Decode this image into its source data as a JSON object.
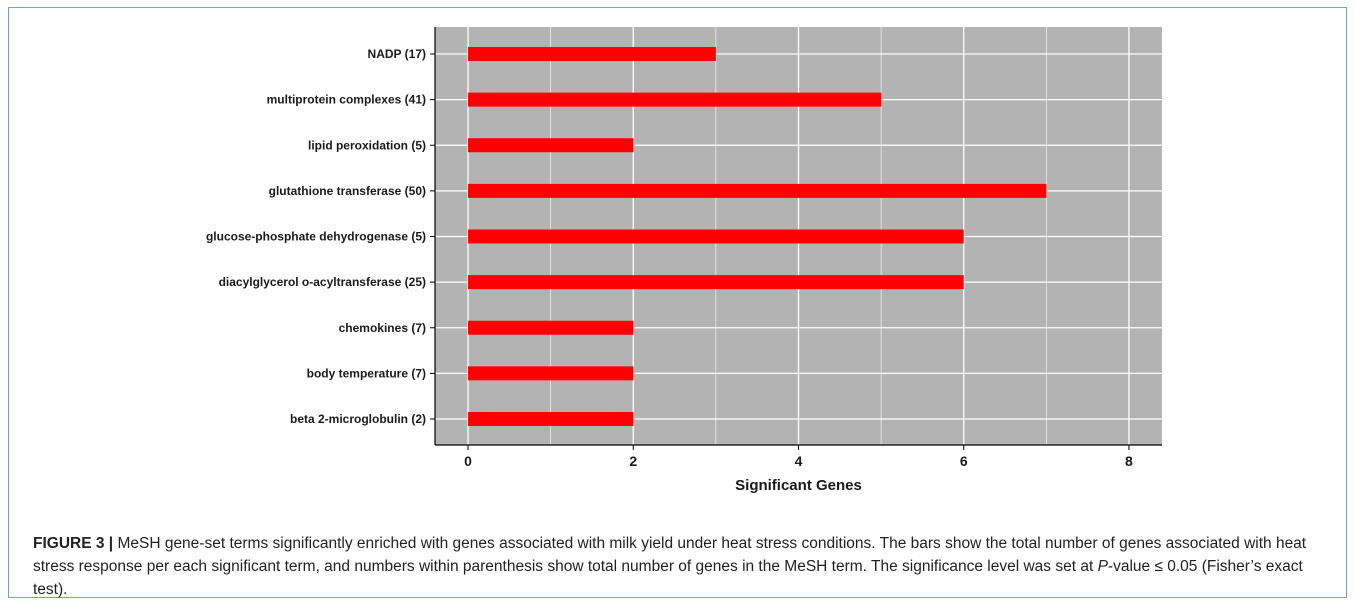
{
  "chart_data": {
    "type": "bar",
    "orientation": "horizontal",
    "categories": [
      "NADP (17)",
      "multiprotein complexes (41)",
      "lipid peroxidation (5)",
      "glutathione transferase (50)",
      "glucose-phosphate dehydrogenase (5)",
      "diacylglycerol o-acyltransferase (25)",
      "chemokines (7)",
      "body temperature (7)",
      "beta 2-microglobulin (2)"
    ],
    "values": [
      3,
      5,
      2,
      7,
      6,
      6,
      2,
      2,
      2
    ],
    "xlabel": "Significant Genes",
    "xlim": [
      -0.4,
      8.4
    ],
    "xticks": [
      0,
      2,
      4,
      6,
      8
    ],
    "minor_gridlines": [
      1,
      3,
      5,
      7
    ],
    "grid": true,
    "colors": {
      "bar": "#ff0000",
      "panel_background": "#b3b3b3",
      "gridline": "#ffffff",
      "axis": "#000000"
    }
  },
  "caption": {
    "label": "FIGURE 3 |",
    "text": " MeSH gene-set terms significantly enriched with genes associated with milk yield under heat stress conditions. The bars show the total number of genes associated with heat stress response per each significant term, and numbers within parenthesis show total number of genes in the MeSH term. The significance level was set at ",
    "p_symbol": "P",
    "after_p": "-value ≤ 0.05 (Fisher’s exact test)."
  }
}
